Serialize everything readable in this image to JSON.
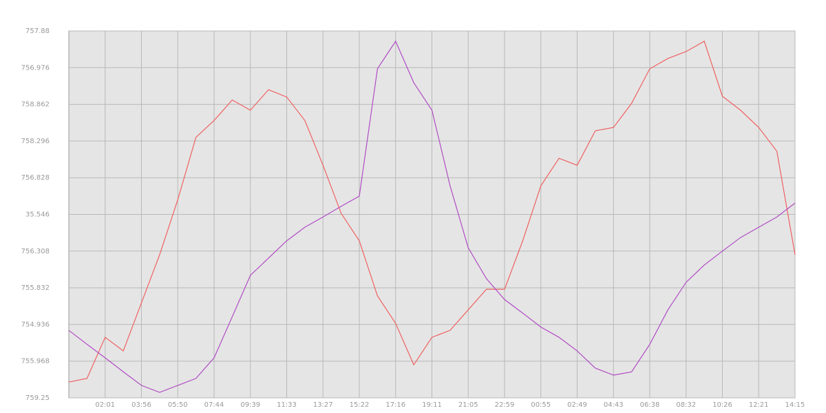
{
  "chart_data": {
    "type": "line",
    "x": [
      0,
      0.5,
      1,
      1.5,
      2,
      2.5,
      3,
      3.5,
      4,
      4.5,
      5,
      5.5,
      6,
      6.5,
      7,
      7.5,
      8,
      8.5,
      9,
      9.5,
      10,
      10.5,
      11,
      11.5,
      12,
      12.5,
      13,
      13.5,
      14,
      14.5,
      15,
      15.5,
      16,
      16.5,
      17,
      17.5,
      18,
      18.5,
      19,
      19.5,
      20
    ],
    "series": [
      {
        "color": "#f06060",
        "values": [
          0.43,
          0.53,
          1.65,
          1.28,
          2.59,
          3.9,
          5.4,
          7.1,
          7.56,
          8.12,
          7.84,
          8.4,
          8.2,
          7.56,
          6.34,
          5.03,
          4.28,
          2.78,
          2.03,
          0.9,
          1.65,
          1.84,
          2.4,
          2.96,
          2.96,
          4.28,
          5.78,
          6.53,
          6.34,
          7.28,
          7.37,
          8.03,
          8.97,
          9.25,
          9.44,
          9.72,
          8.22,
          7.84,
          7.37,
          6.72,
          3.9
        ]
      },
      {
        "color": "#b04cc4",
        "values": [
          1.84,
          1.46,
          1.09,
          0.71,
          0.34,
          0.15,
          0.34,
          0.53,
          1.09,
          2.21,
          3.34,
          3.81,
          4.28,
          4.65,
          4.93,
          5.22,
          5.5,
          8.97,
          9.72,
          8.59,
          7.84,
          5.78,
          4.09,
          3.25,
          2.68,
          2.31,
          1.93,
          1.65,
          1.28,
          0.81,
          0.62,
          0.71,
          1.46,
          2.4,
          3.15,
          3.62,
          4.0,
          4.37,
          4.65,
          4.93,
          5.31
        ]
      }
    ],
    "xlim": [
      0,
      20
    ],
    "xticks": [
      {
        "value": 1,
        "label": "02:01"
      },
      {
        "value": 2,
        "label": "03:56"
      },
      {
        "value": 3,
        "label": "05:50"
      },
      {
        "value": 4,
        "label": "07:44"
      },
      {
        "value": 5,
        "label": "09:39"
      },
      {
        "value": 6,
        "label": "11:33"
      },
      {
        "value": 7,
        "label": "13:27"
      },
      {
        "value": 8,
        "label": "15:22"
      },
      {
        "value": 9,
        "label": "17:16"
      },
      {
        "value": 10,
        "label": "19:11"
      },
      {
        "value": 11,
        "label": "21:05"
      },
      {
        "value": 12,
        "label": "22:59"
      },
      {
        "value": 13,
        "label": "00:55"
      },
      {
        "value": 14,
        "label": "02:49"
      },
      {
        "value": 15,
        "label": "04:43"
      },
      {
        "value": 16,
        "label": "06:38"
      },
      {
        "value": 17,
        "label": "08:32"
      },
      {
        "value": 18,
        "label": "10:26"
      },
      {
        "value": 19,
        "label": "12:21"
      },
      {
        "value": 20,
        "label": "14:15"
      }
    ],
    "ylim": [
      0,
      10
    ],
    "yticks": [
      {
        "value": 0,
        "label": "759.25"
      },
      {
        "value": 1,
        "label": "755.968"
      },
      {
        "value": 2,
        "label": "754.936"
      },
      {
        "value": 3,
        "label": "755.832"
      },
      {
        "value": 4,
        "label": "756.308"
      },
      {
        "value": 5,
        "label": "35.546"
      },
      {
        "value": 6,
        "label": "756.828"
      },
      {
        "value": 7,
        "label": "758.296"
      },
      {
        "value": 8,
        "label": "758.862"
      },
      {
        "value": 9,
        "label": "756.976"
      },
      {
        "value": 10,
        "label": "757.88"
      }
    ],
    "grid": true
  }
}
